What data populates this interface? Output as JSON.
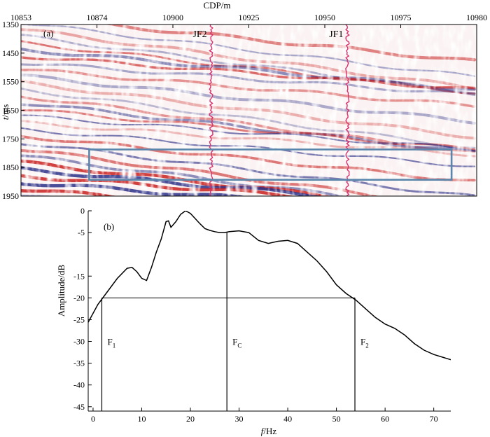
{
  "chart_data": [
    {
      "type": "heatmap",
      "panel_label": "(a)",
      "xlabel": "CDP/m",
      "ylabel_italic": "t",
      "ylabel_unit": "/ms",
      "x_ticks": [
        "10853",
        "10874",
        "10900",
        "10925",
        "10950",
        "10975",
        "10980"
      ],
      "y_ticks": [
        "1350",
        "1450",
        "1550",
        "1650",
        "1750",
        "1850",
        "1950"
      ],
      "xlim": [
        10853,
        10980
      ],
      "ylim": [
        1350,
        1950
      ],
      "y_inverted": true,
      "wells": [
        {
          "name": "JF2",
          "cdp": 10906
        },
        {
          "name": "JF1",
          "cdp": 10944
        }
      ],
      "highlight_box": {
        "cdp": [
          10872,
          10973
        ],
        "t": [
          1787,
          1893
        ]
      },
      "colors": {
        "positive": "#c8201e",
        "negative": "#2a2f86",
        "well": "#d8326e",
        "box": "#5b86ab"
      }
    },
    {
      "type": "line",
      "panel_label": "(b)",
      "xlabel_italic": "f",
      "xlabel_unit": "/Hz",
      "ylabel": "Amplitude/dB",
      "xlim": [
        -1,
        73.5
      ],
      "ylim": [
        -46,
        0
      ],
      "x_ticks": [
        0,
        10,
        20,
        30,
        40,
        50,
        60,
        70
      ],
      "y_ticks": [
        0,
        -5,
        -15,
        -20,
        -25,
        -30,
        -35,
        -40,
        -45
      ],
      "series": [
        {
          "x": [
            -1,
            1,
            3,
            5,
            7,
            8,
            9,
            10,
            11,
            12,
            13,
            14,
            15,
            15.5,
            16,
            17,
            18,
            19,
            20,
            21,
            22,
            23,
            24,
            25,
            26,
            27,
            28,
            30,
            32,
            34,
            36,
            38,
            40,
            42,
            44,
            46,
            48,
            50,
            52,
            54,
            56,
            58,
            60,
            62,
            64,
            66,
            68,
            70,
            73.5
          ],
          "y": [
            -25.6,
            -21.5,
            -18.5,
            -15.5,
            -13.2,
            -13,
            -14,
            -15.5,
            -16,
            -13,
            -9.5,
            -6.5,
            -2.5,
            -2.3,
            -3.8,
            -2.5,
            -0.8,
            0,
            -0.6,
            -1.8,
            -3.0,
            -4.1,
            -4.5,
            -4.8,
            -5.0,
            -5.0,
            -4.8,
            -4.6,
            -5.0,
            -6.8,
            -7.5,
            -7.0,
            -6.8,
            -7.5,
            -9.5,
            -11.5,
            -14.0,
            -17.0,
            -19.0,
            -20.5,
            -22.5,
            -24.5,
            -26.0,
            -27.0,
            -28.5,
            -30.5,
            -32.0,
            -33.0,
            -34.2
          ]
        }
      ],
      "hline_y": -20,
      "markers": [
        {
          "name": "F1",
          "main": "F",
          "sub": "1",
          "x": 1.8
        },
        {
          "name": "FC",
          "main": "F",
          "sub": "C",
          "x": 27.5
        },
        {
          "name": "F2",
          "main": "F",
          "sub": "2",
          "x": 53.8
        }
      ]
    }
  ]
}
